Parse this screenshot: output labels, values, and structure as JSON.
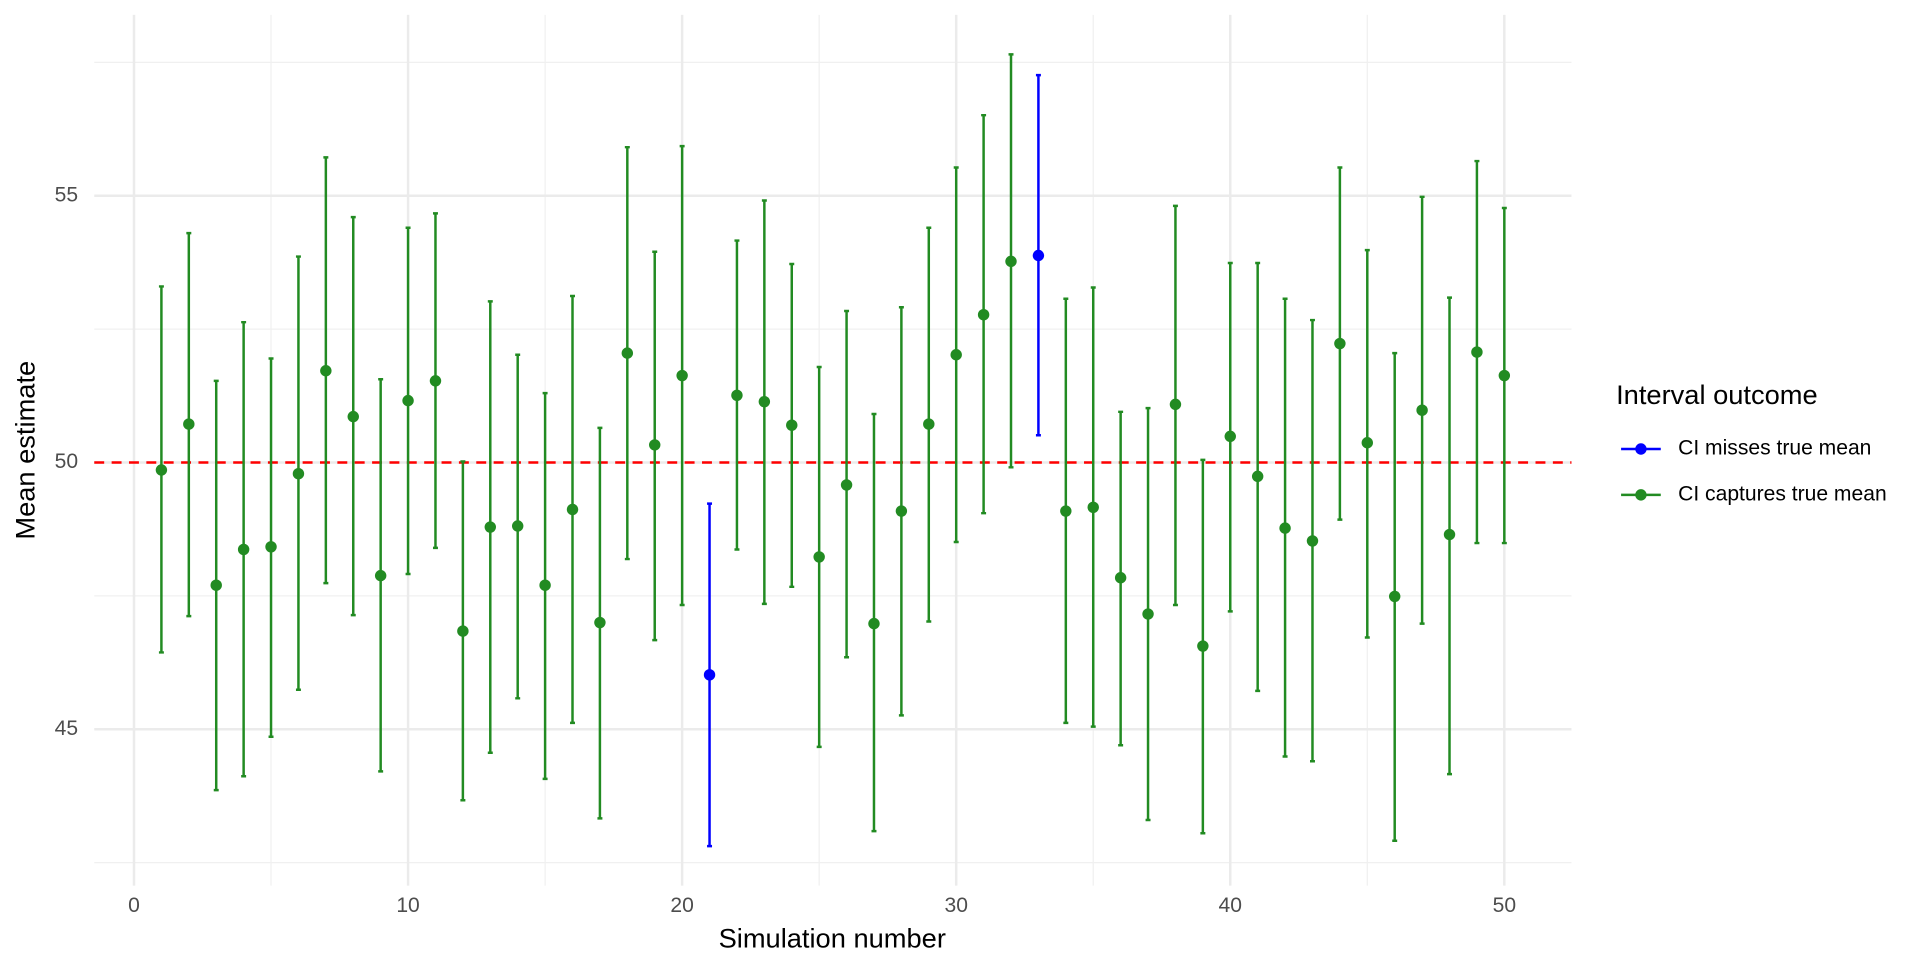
{
  "chart_data": {
    "type": "errorbar",
    "xlabel": "Simulation number",
    "ylabel": "Mean estimate",
    "legend_title": "Interval outcome",
    "legend": "right",
    "xlim": [
      -1.45,
      52.45
    ],
    "xticks": [
      0,
      10,
      20,
      30,
      40,
      50
    ],
    "xminor": [
      5,
      15,
      25,
      35,
      45
    ],
    "ylim": [
      42.07,
      58.39
    ],
    "yticks": [
      45,
      50,
      55
    ],
    "yminor": [
      42.5,
      47.5,
      52.5,
      57.5
    ],
    "grid": true,
    "hline": {
      "value": 50,
      "color": "#ff0000"
    },
    "series": [
      {
        "name": "CI misses true mean",
        "color": "#0000ff",
        "x": [
          21,
          33
        ],
        "values": [
          46.02,
          53.88
        ],
        "lower": [
          42.81,
          50.51
        ],
        "upper": [
          49.23,
          57.26
        ]
      },
      {
        "name": "CI captures true mean",
        "color": "#228b22",
        "x": [
          1,
          2,
          3,
          4,
          5,
          6,
          7,
          8,
          9,
          10,
          11,
          12,
          13,
          14,
          15,
          16,
          17,
          18,
          19,
          20,
          22,
          23,
          24,
          25,
          26,
          27,
          28,
          29,
          30,
          31,
          32,
          34,
          35,
          36,
          37,
          38,
          39,
          40,
          41,
          42,
          43,
          44,
          45,
          46,
          47,
          48,
          49,
          50
        ],
        "values": [
          49.86,
          50.72,
          47.7,
          48.37,
          48.42,
          49.79,
          51.72,
          50.86,
          47.88,
          51.16,
          51.53,
          46.84,
          48.79,
          48.81,
          47.7,
          49.12,
          47.0,
          52.05,
          50.33,
          51.63,
          51.26,
          51.14,
          50.7,
          48.23,
          49.58,
          46.98,
          49.09,
          50.72,
          52.02,
          52.77,
          53.77,
          49.09,
          49.16,
          47.84,
          47.16,
          51.09,
          46.56,
          50.49,
          49.74,
          48.77,
          48.53,
          52.23,
          50.37,
          47.49,
          50.98,
          48.65,
          52.07,
          51.63
        ],
        "lower": [
          46.44,
          47.12,
          43.86,
          44.12,
          44.86,
          45.74,
          47.74,
          47.14,
          44.21,
          47.91,
          48.4,
          43.67,
          44.56,
          45.58,
          44.07,
          45.12,
          43.33,
          48.19,
          46.67,
          47.33,
          48.37,
          47.35,
          47.67,
          44.67,
          46.35,
          43.09,
          45.26,
          47.02,
          48.51,
          49.05,
          49.91,
          45.12,
          45.05,
          44.7,
          43.3,
          47.33,
          43.05,
          47.21,
          45.72,
          44.49,
          44.4,
          48.93,
          46.72,
          42.91,
          46.98,
          44.16,
          48.49,
          48.49
        ],
        "upper": [
          53.3,
          54.3,
          51.53,
          52.63,
          51.95,
          53.86,
          55.72,
          54.6,
          51.56,
          54.4,
          54.67,
          50.02,
          53.02,
          52.02,
          51.3,
          53.12,
          50.65,
          55.91,
          53.95,
          55.93,
          54.16,
          54.91,
          53.72,
          51.79,
          52.84,
          50.91,
          52.91,
          54.4,
          55.53,
          56.51,
          57.65,
          53.07,
          53.28,
          50.95,
          51.02,
          54.81,
          50.05,
          53.74,
          53.74,
          53.07,
          52.67,
          55.53,
          53.98,
          52.05,
          54.98,
          53.09,
          55.65,
          54.77
        ]
      }
    ]
  }
}
